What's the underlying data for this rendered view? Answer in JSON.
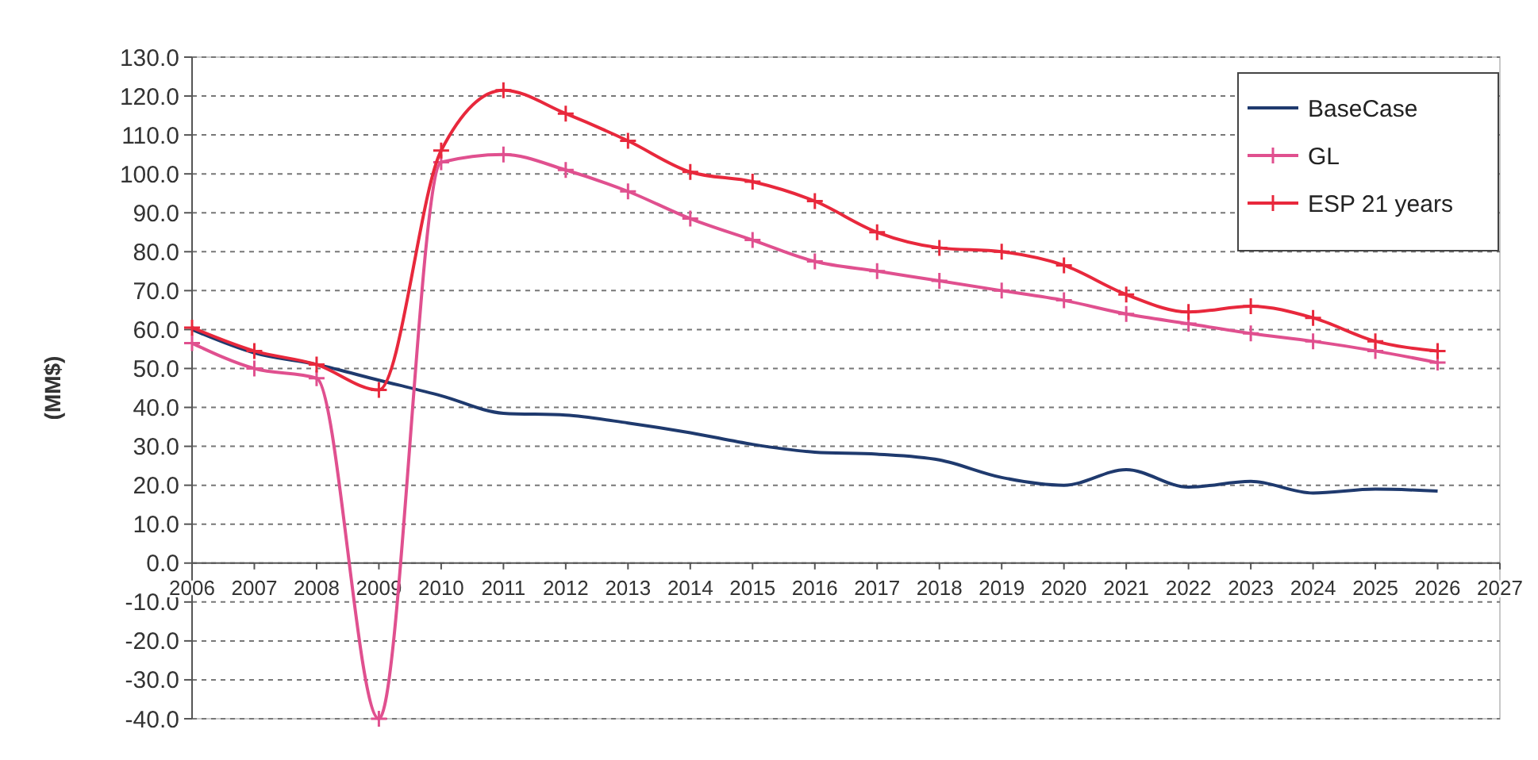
{
  "chart_data": {
    "type": "line",
    "ylabel": "(MM$)",
    "x": [
      2006,
      2007,
      2008,
      2009,
      2010,
      2011,
      2012,
      2013,
      2014,
      2015,
      2016,
      2017,
      2018,
      2019,
      2020,
      2021,
      2022,
      2023,
      2024,
      2025,
      2026
    ],
    "xlim": [
      2006,
      2027
    ],
    "xticks": [
      2006,
      2007,
      2008,
      2009,
      2010,
      2011,
      2012,
      2013,
      2014,
      2015,
      2016,
      2017,
      2018,
      2019,
      2020,
      2021,
      2022,
      2023,
      2024,
      2025,
      2026,
      2027
    ],
    "ylim": [
      -40,
      130
    ],
    "yticks": [
      {
        "value": -40,
        "label": "-40.0"
      },
      {
        "value": -30,
        "label": "-30.0"
      },
      {
        "value": -20,
        "label": "-20.0"
      },
      {
        "value": -10,
        "label": "-10.0"
      },
      {
        "value": 0,
        "label": "0.0"
      },
      {
        "value": 10,
        "label": "10.0"
      },
      {
        "value": 20,
        "label": "20.0"
      },
      {
        "value": 30,
        "label": "30.0"
      },
      {
        "value": 40,
        "label": "40.0"
      },
      {
        "value": 50,
        "label": "50.0"
      },
      {
        "value": 60,
        "label": "60.0"
      },
      {
        "value": 70,
        "label": "70.0"
      },
      {
        "value": 80,
        "label": "80.0"
      },
      {
        "value": 90,
        "label": "90.0"
      },
      {
        "value": 100,
        "label": "100.0"
      },
      {
        "value": 110,
        "label": "110.0"
      },
      {
        "value": 120,
        "label": "120.0"
      },
      {
        "value": 130,
        "label": "130.0"
      }
    ],
    "grid": "y",
    "legend": "top right",
    "line_style": "solid",
    "series": [
      {
        "name": "BaseCase",
        "color": "#1f3a6e",
        "marker": "none",
        "values": [
          60,
          54,
          51,
          47,
          43,
          38.5,
          38,
          36,
          33.5,
          30.5,
          28.5,
          28,
          26.5,
          22,
          20,
          24,
          19.5,
          21,
          18,
          19,
          18.5
        ]
      },
      {
        "name": "GL",
        "color": "#e0508f",
        "marker": "cross",
        "values": [
          56.5,
          50,
          47.5,
          -40,
          103,
          105,
          101,
          95.5,
          88.5,
          83,
          77.5,
          75,
          72.5,
          70,
          67.5,
          64,
          61.5,
          59,
          57,
          54.5,
          51.5
        ]
      },
      {
        "name": "ESP 21 years",
        "color": "#e8283c",
        "marker": "cross",
        "values": [
          60.5,
          54.5,
          51,
          44.5,
          106,
          121.5,
          115.5,
          108.5,
          100.5,
          98,
          93,
          85,
          81,
          80,
          76.5,
          69,
          64.5,
          66,
          63,
          57,
          54.5
        ]
      }
    ]
  }
}
